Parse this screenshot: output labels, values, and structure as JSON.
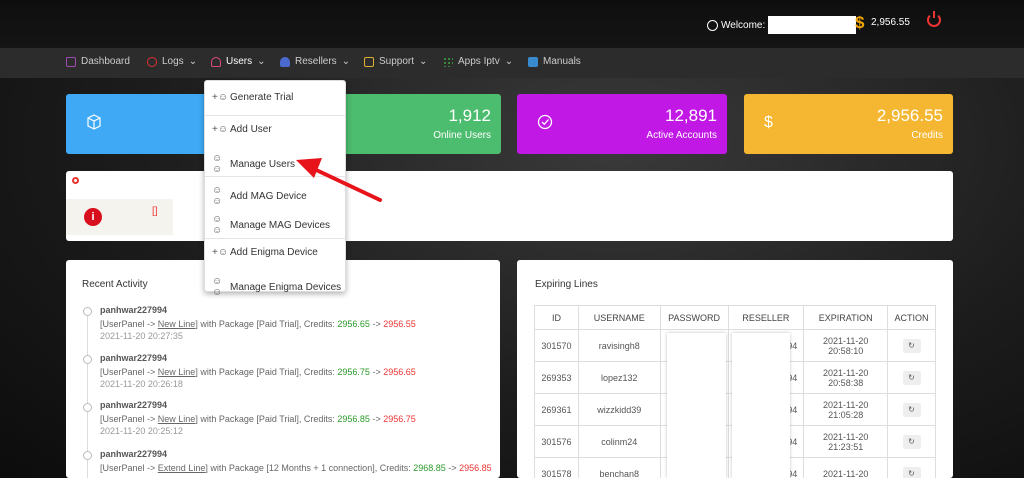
{
  "header": {
    "welcome_label": "Welcome:",
    "credits": "2,956.55",
    "currency_symbol": "$"
  },
  "nav": [
    {
      "label": "Dashboard",
      "color": "#a04bb0"
    },
    {
      "label": "Logs",
      "color": "#e03030",
      "chevron": "⌄"
    },
    {
      "label": "Users",
      "color": "#e04a7a",
      "chevron": "⌄"
    },
    {
      "label": "Resellers",
      "color": "#4a6ad0",
      "chevron": "⌄"
    },
    {
      "label": "Support",
      "color": "#e0b030",
      "chevron": "⌄"
    },
    {
      "label": "Apps Iptv",
      "color": "#3aa83a",
      "chevron": "⌄"
    },
    {
      "label": "Manuals",
      "color": "#3a8ad0"
    }
  ],
  "dropdown": [
    {
      "label": "Generate Trial",
      "icon": "add-user-icon"
    },
    {
      "label": "Add User",
      "icon": "add-user-icon"
    },
    {
      "label": "Manage Users",
      "icon": "users-icon"
    },
    {
      "label": "Add MAG Device",
      "icon": "users-icon"
    },
    {
      "label": "Manage MAG Devices",
      "icon": "users-icon"
    },
    {
      "label": "Add Enigma Device",
      "icon": "add-user-icon"
    },
    {
      "label": "Manage Enigma Devices",
      "icon": "users-icon"
    }
  ],
  "cards": [
    {
      "value": "",
      "label": "",
      "color": "#3fa9f5",
      "icon": "cube-icon"
    },
    {
      "value": "1,912",
      "label": "Online Users",
      "color": "#4cbc6e"
    },
    {
      "value": "12,891",
      "label": "Active Accounts",
      "color": "#c218e6",
      "icon": "check-circle-icon"
    },
    {
      "value": "2,956.55",
      "label": "Credits",
      "color": "#f5b731",
      "icon": "dollar-icon"
    }
  ],
  "notice": {
    "bracket": "[]",
    "info_symbol": "i"
  },
  "recent_activity": {
    "title": "Recent Activity",
    "items": [
      {
        "user": "panhwar227994",
        "pre": "[UserPanel ->",
        "link": "New Line",
        "mid": "] with Package [Paid Trial], Credits:",
        "from": "2956.65",
        "arrow": "->",
        "to": "2956.55",
        "time": "2021-11-20 20:27:35"
      },
      {
        "user": "panhwar227994",
        "pre": "[UserPanel ->",
        "link": "New Line",
        "mid": "] with Package [Paid Trial], Credits:",
        "from": "2956.75",
        "arrow": "->",
        "to": "2956.65",
        "time": "2021-11-20 20:26:18"
      },
      {
        "user": "panhwar227994",
        "pre": "[UserPanel ->",
        "link": "New Line",
        "mid": "] with Package [Paid Trial], Credits:",
        "from": "2956.85",
        "arrow": "->",
        "to": "2956.75",
        "time": "2021-11-20 20:25:12"
      },
      {
        "user": "panhwar227994",
        "pre": "[UserPanel ->",
        "link": "Extend Line",
        "mid": "] with Package [12 Months + 1 connection], Credits:",
        "from": "2968.85",
        "arrow": "->",
        "to": "2956.85",
        "time": ""
      }
    ]
  },
  "expiring": {
    "title": "Expiring Lines",
    "columns": [
      "ID",
      "USERNAME",
      "PASSWORD",
      "RESELLER",
      "EXPIRATION",
      "ACTION"
    ],
    "rows": [
      {
        "id": "301570",
        "username": "ravisingh8",
        "reseller": "94",
        "date": "2021-11-20",
        "time": "20:58:10"
      },
      {
        "id": "269353",
        "username": "lopez132",
        "reseller": "94",
        "date": "2021-11-20",
        "time": "20:58:38"
      },
      {
        "id": "269361",
        "username": "wizzkidd39",
        "reseller": "94",
        "date": "2021-11-20",
        "time": "21:05:28"
      },
      {
        "id": "301576",
        "username": "colinm24",
        "reseller": "94",
        "date": "2021-11-20",
        "time": "21:23:51"
      },
      {
        "id": "301578",
        "username": "benchan8",
        "reseller": "94",
        "date": "2021-11-20",
        "time": ""
      }
    ]
  }
}
